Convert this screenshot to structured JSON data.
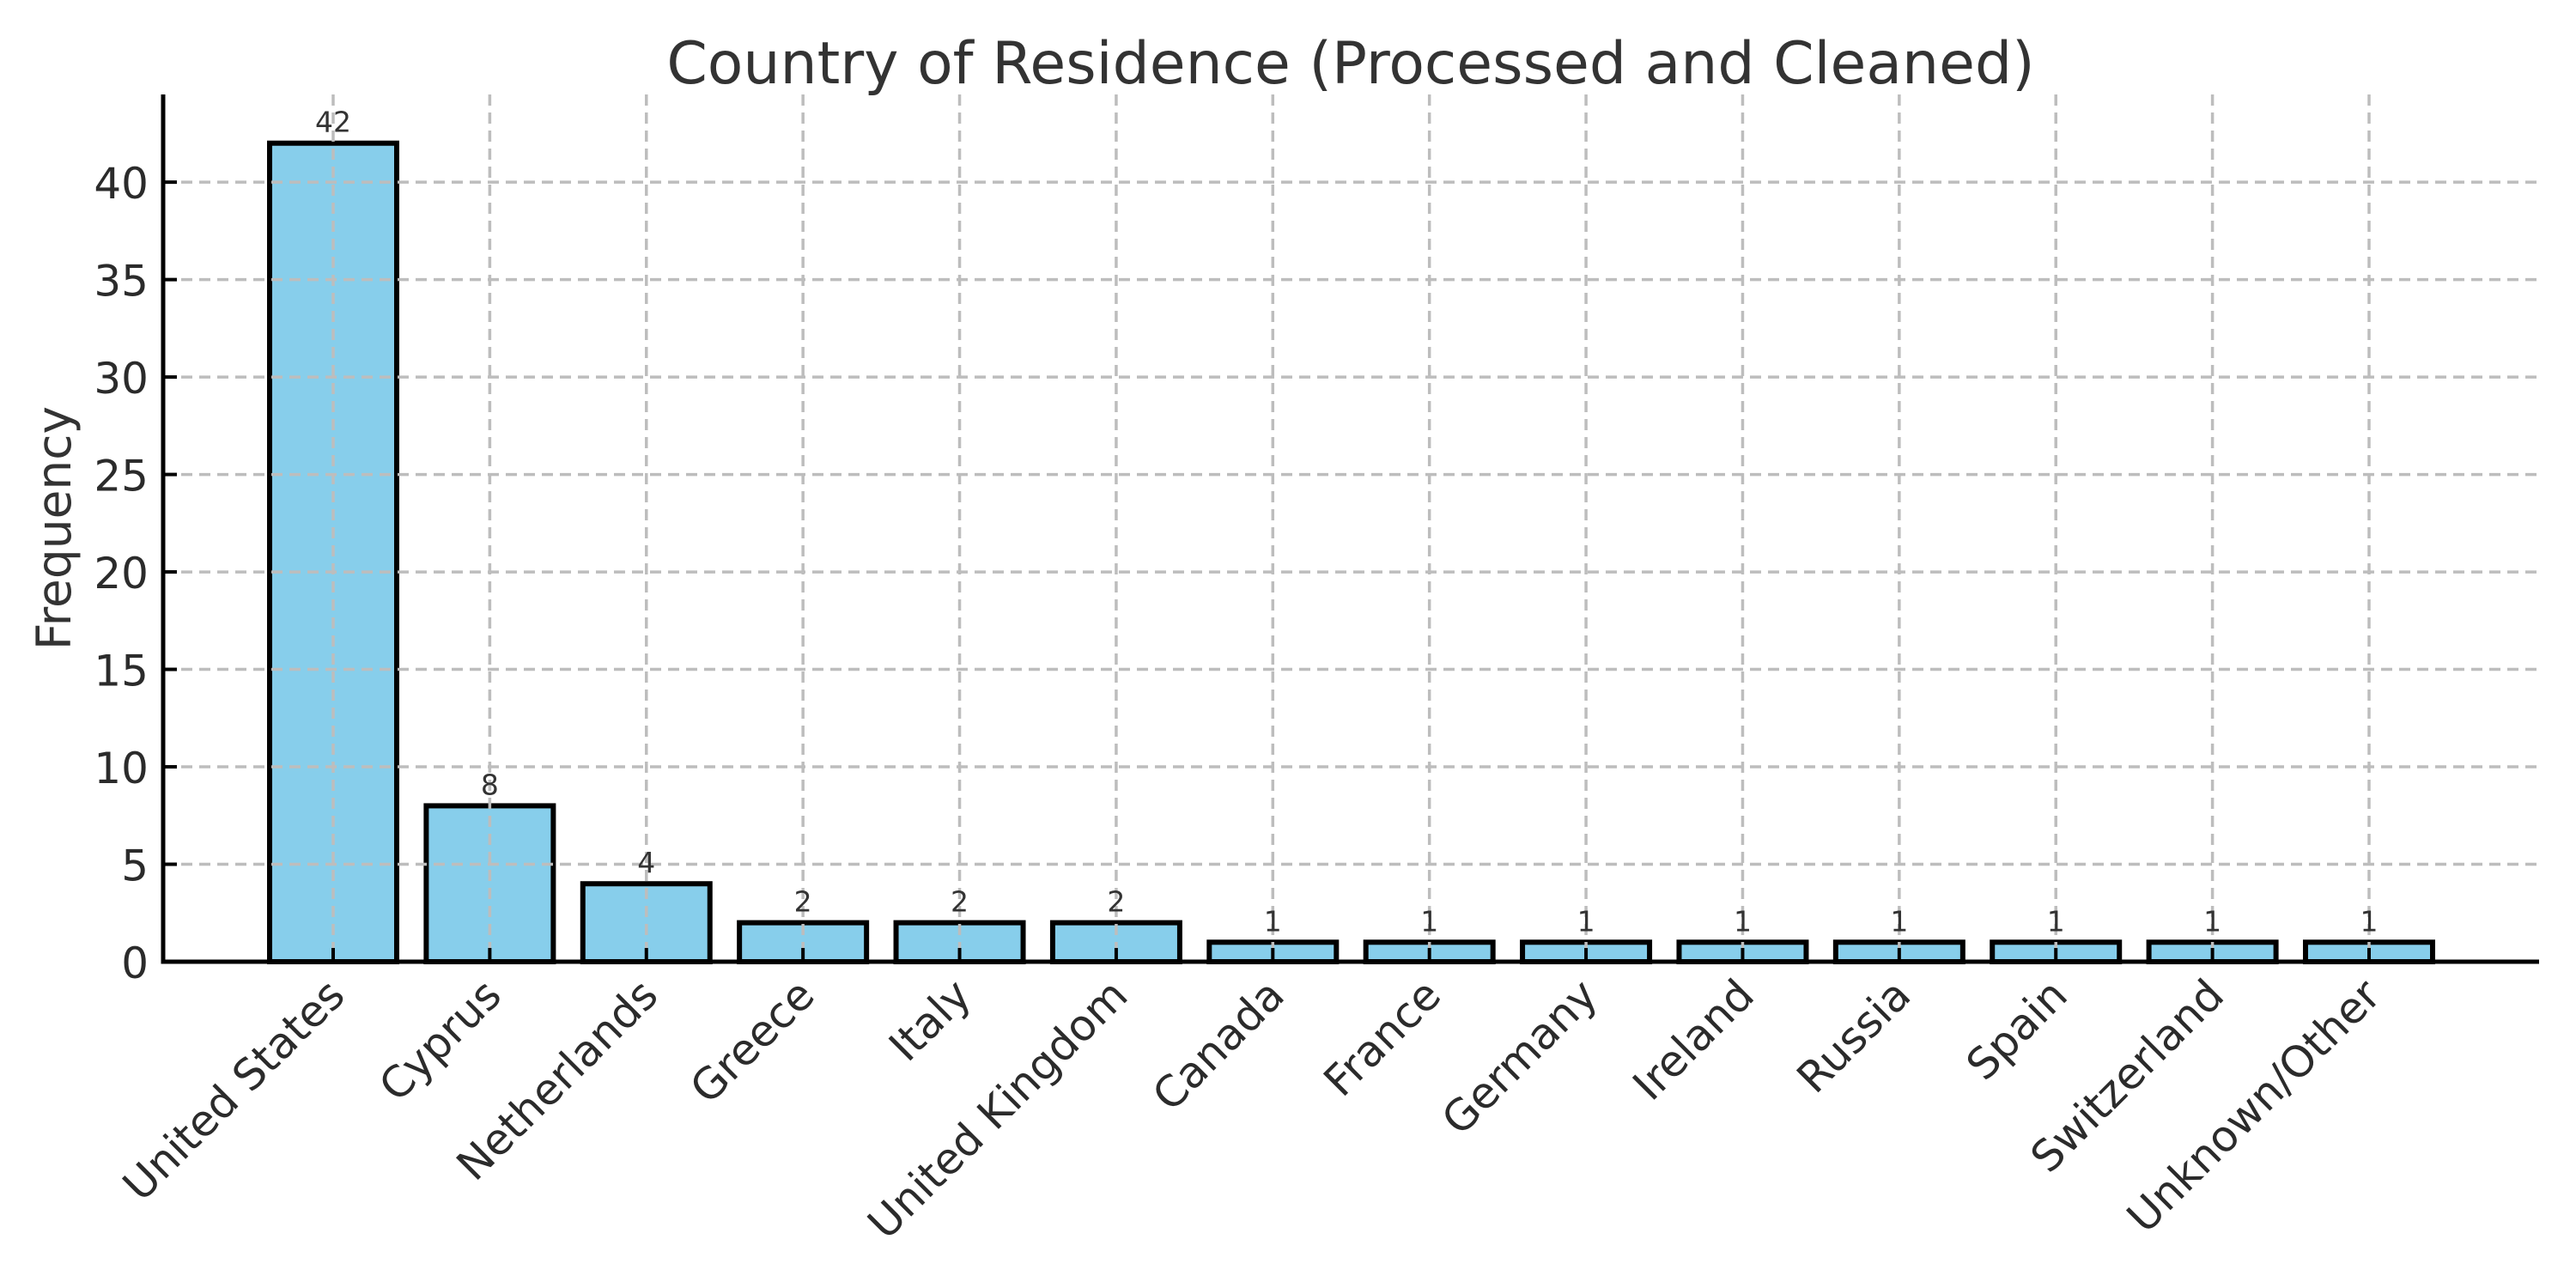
{
  "chart_data": {
    "type": "bar",
    "title": "Country of Residence (Processed and Cleaned)",
    "xlabel": "",
    "ylabel": "Frequency",
    "categories": [
      "United States",
      "Cyprus",
      "Netherlands",
      "Greece",
      "Italy",
      "United Kingdom",
      "Canada",
      "France",
      "Germany",
      "Ireland",
      "Russia",
      "Spain",
      "Switzerland",
      "Unknown/Other"
    ],
    "values": [
      42,
      8,
      4,
      2,
      2,
      2,
      1,
      1,
      1,
      1,
      1,
      1,
      1,
      1
    ],
    "bar_labels": [
      "42",
      "8",
      "4",
      "2",
      "2",
      "2",
      "1",
      "1",
      "1",
      "1",
      "1",
      "1",
      "1",
      "1"
    ],
    "yticks": [
      0,
      5,
      10,
      15,
      20,
      25,
      30,
      35,
      40
    ],
    "ylim": [
      0,
      44.5
    ],
    "grid": "both-dashed",
    "legend_position": "none",
    "xtick_rotation_degrees": 45,
    "colors": {
      "bar_fill": "#87CEEB",
      "bar_edge": "#000000",
      "grid": "#bdbdbd",
      "spine": "#000000",
      "tick": "#000000",
      "text": "#333333",
      "background": "#ffffff"
    }
  }
}
